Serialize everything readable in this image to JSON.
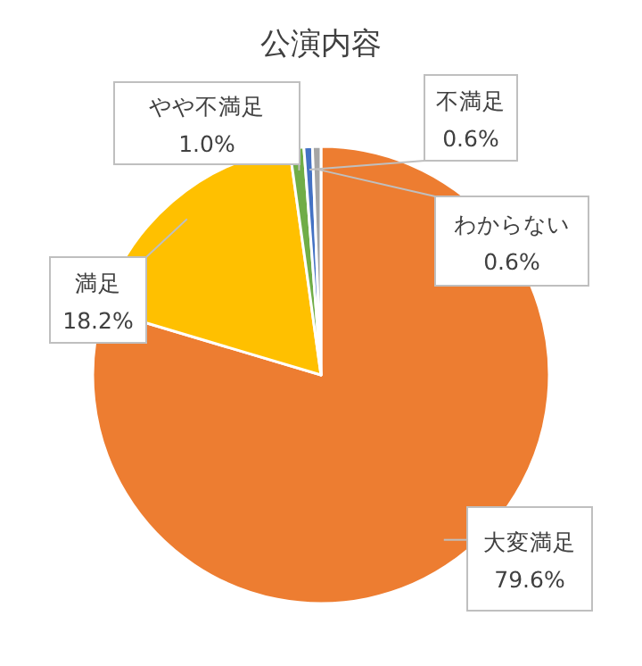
{
  "chart_data": {
    "type": "pie",
    "title": "公演内容",
    "categories": [
      "大変満足",
      "満足",
      "やや不満足",
      "不満足",
      "わからない"
    ],
    "values": [
      79.6,
      18.2,
      1.0,
      0.6,
      0.6
    ],
    "colors": [
      "#ed7d31",
      "#ffc000",
      "#70ad47",
      "#4472c4",
      "#a5a5a5"
    ],
    "value_labels": [
      "79.6%",
      "18.2%",
      "1.0%",
      "0.6%",
      "0.6%"
    ],
    "legend": false
  }
}
